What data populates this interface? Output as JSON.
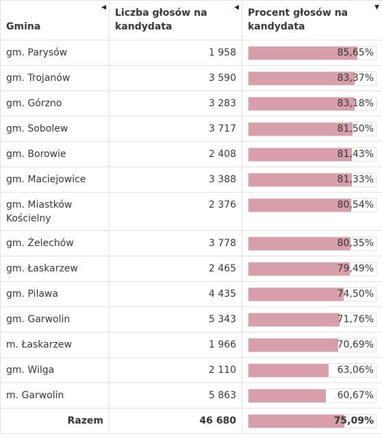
{
  "header": {
    "col_name": "Gmina",
    "col_votes": "Liczba głosów na kandydata",
    "col_percent": "Procent głosów na kandydata",
    "sort_icons": [
      "sort-left-icon",
      "sort-left-icon",
      "sort-down-icon"
    ]
  },
  "rows": [
    {
      "name": "gm. Parysów",
      "votes": "1 958",
      "percent": "85,65%",
      "value": 85.65
    },
    {
      "name": "gm. Trojanów",
      "votes": "3 590",
      "percent": "83,37%",
      "value": 83.37
    },
    {
      "name": "gm. Górzno",
      "votes": "3 283",
      "percent": "83,18%",
      "value": 83.18
    },
    {
      "name": "gm. Sobolew",
      "votes": "3 717",
      "percent": "81,50%",
      "value": 81.5
    },
    {
      "name": "gm. Borowie",
      "votes": "2 408",
      "percent": "81,43%",
      "value": 81.43
    },
    {
      "name": "gm. Maciejowice",
      "votes": "3 388",
      "percent": "81,33%",
      "value": 81.33
    },
    {
      "name": "gm. Miastków Kościelny",
      "votes": "2 376",
      "percent": "80,54%",
      "value": 80.54
    },
    {
      "name": "gm. Żelechów",
      "votes": "3 778",
      "percent": "80,35%",
      "value": 80.35
    },
    {
      "name": "gm. Łaskarzew",
      "votes": "2 465",
      "percent": "79,49%",
      "value": 79.49
    },
    {
      "name": "gm. Pilawa",
      "votes": "4 435",
      "percent": "74,50%",
      "value": 74.5
    },
    {
      "name": "gm. Garwolin",
      "votes": "5 343",
      "percent": "71,76%",
      "value": 71.76
    },
    {
      "name": "m. Łaskarzew",
      "votes": "1 966",
      "percent": "70,69%",
      "value": 70.69
    },
    {
      "name": "gm. Wilga",
      "votes": "2 110",
      "percent": "63,06%",
      "value": 63.06
    },
    {
      "name": "m. Garwolin",
      "votes": "5 863",
      "percent": "60,67%",
      "value": 60.67
    }
  ],
  "total": {
    "name": "Razem",
    "votes": "46 680",
    "percent": "75,09%",
    "value": 75.09
  },
  "colors": {
    "bar_fill": "#d79eab",
    "border": "#e2e2e2",
    "text": "#333333"
  }
}
